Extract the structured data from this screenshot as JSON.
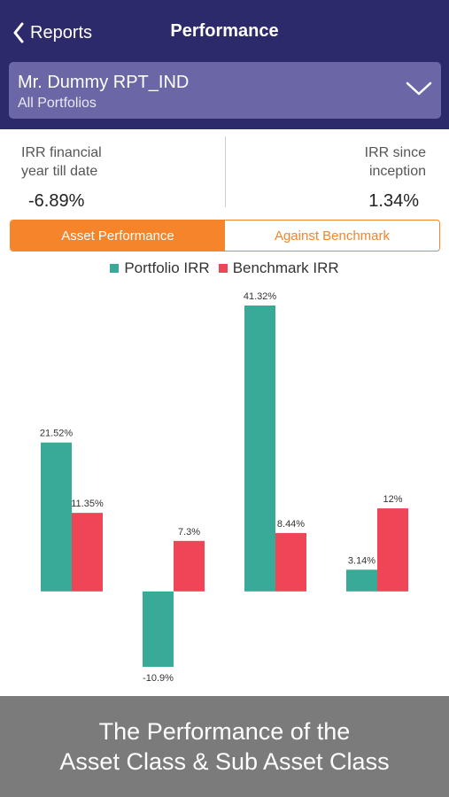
{
  "header": {
    "back_label": "Reports",
    "title": "Performance"
  },
  "selector": {
    "name": "Mr. Dummy RPT_IND",
    "subtitle": "All Portfolios"
  },
  "irr": {
    "left_label_line1": "IRR financial",
    "left_label_line2": "year till date",
    "left_value": "-6.89%",
    "right_label_line1": "IRR since",
    "right_label_line2": "inception",
    "right_value": "1.34%"
  },
  "tabs": {
    "active": "Asset Performance",
    "inactive": "Against Benchmark"
  },
  "colors": {
    "header_bg": "#2d2a6b",
    "accent": "#f5842a",
    "portfolio": "#3aaa98",
    "benchmark": "#f04457"
  },
  "chart_data": {
    "type": "bar",
    "categories": [
      "",
      "",
      "",
      ""
    ],
    "series": [
      {
        "name": "Portfolio IRR",
        "values": [
          21.52,
          -10.9,
          41.32,
          3.14
        ],
        "labels": [
          "21.52%",
          "-10.9%",
          "41.32%",
          "3.14%"
        ]
      },
      {
        "name": "Benchmark IRR",
        "values": [
          11.35,
          7.3,
          8.44,
          12
        ],
        "labels": [
          "11.35%",
          "7.3%",
          "8.44%",
          "12%"
        ]
      }
    ],
    "ylim": [
      -10.9,
      41.32
    ],
    "grid": false,
    "legend": "top-center"
  },
  "banner": {
    "line1": "The Performance of the",
    "line2": "Asset Class & Sub Asset Class"
  }
}
